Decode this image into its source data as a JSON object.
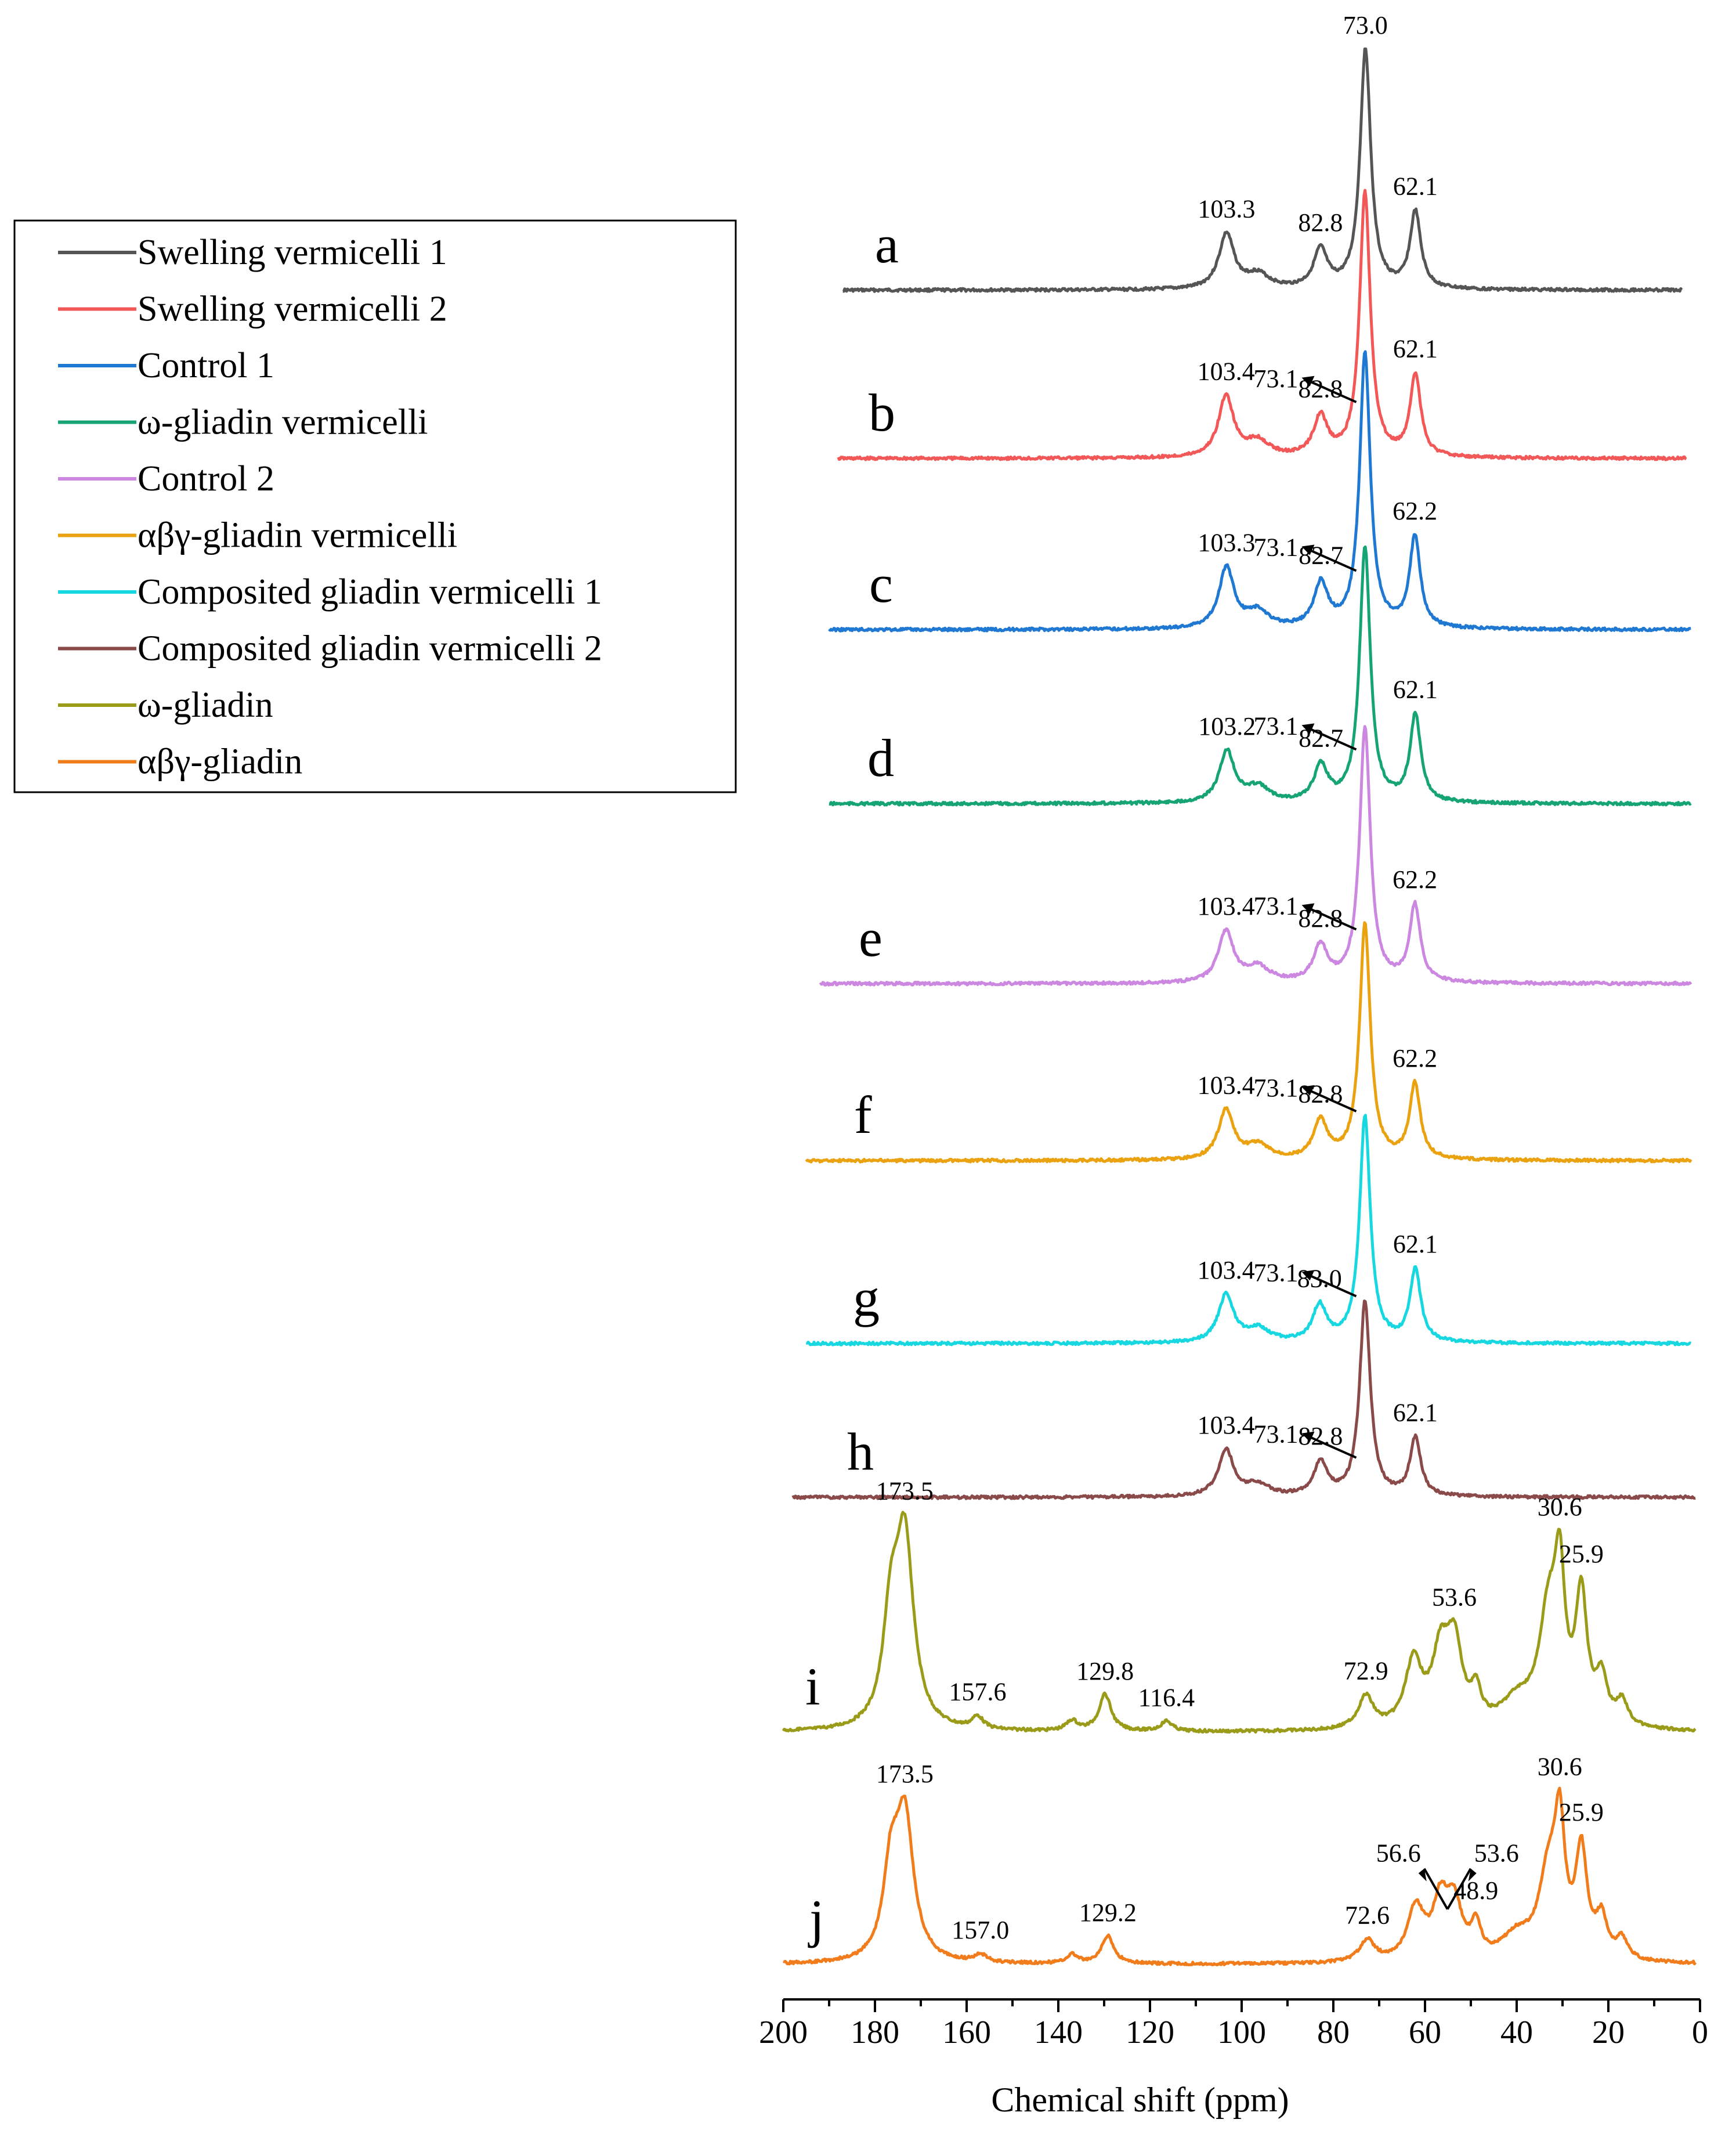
{
  "chart_data": {
    "type": "line",
    "title": "",
    "xlabel": "Chemical shift (ppm)",
    "ylabel": "",
    "xlim": [
      200,
      0
    ],
    "x_reversed": true,
    "x_ticks": [
      "200",
      "180",
      "160",
      "140",
      "120",
      "100",
      "80",
      "60",
      "40",
      "20",
      "0"
    ],
    "x_tick_values": [
      200,
      180,
      160,
      140,
      120,
      100,
      80,
      60,
      40,
      20,
      0
    ],
    "legend": {
      "placement": "top-left",
      "entries": [
        {
          "name": "Swelling vermicelli 1",
          "color": "#555555"
        },
        {
          "name": "Swelling vermicelli 2",
          "color": "#f25858"
        },
        {
          "name": "Control 1",
          "color": "#1f78d1"
        },
        {
          "name": "ω-gliadin vermicelli",
          "color": "#16a475"
        },
        {
          "name": "Control 2",
          "color": "#cc88e0"
        },
        {
          "name": "αβγ-gliadin vermicelli",
          "color": "#eba211"
        },
        {
          "name": "Composited gliadin vermicelli 1",
          "color": "#17d7e0"
        },
        {
          "name": "Composited gliadin vermicelli 2",
          "color": "#8b4a4a"
        },
        {
          "name": "ω-gliadin",
          "color": "#9b9b1a"
        },
        {
          "name": "αβγ-gliadin",
          "color": "#f07c1c"
        }
      ]
    },
    "series": [
      {
        "label": "a",
        "name": "Swelling vermicelli 1",
        "color": "#555555",
        "range": [
          187,
          4
        ],
        "peaks": [
          {
            "x": 103.3,
            "h": 0.23,
            "w": 2.0
          },
          {
            "x": 96.5,
            "h": 0.06,
            "w": 3.0
          },
          {
            "x": 82.8,
            "h": 0.16,
            "w": 1.8
          },
          {
            "x": 73.0,
            "h": 1.0,
            "w": 1.4
          },
          {
            "x": 62.1,
            "h": 0.32,
            "w": 1.4
          }
        ],
        "labels": [
          {
            "text": "73.0",
            "x": 73.0,
            "pos": "top"
          },
          {
            "text": "103.3",
            "x": 103.3,
            "pos": "top"
          },
          {
            "text": "82.8",
            "x": 82.8,
            "pos": "top"
          },
          {
            "text": "62.1",
            "x": 62.1,
            "pos": "top"
          }
        ]
      },
      {
        "label": "b",
        "name": "Swelling vermicelli 2",
        "color": "#f25858",
        "range": [
          188,
          3
        ],
        "peaks": [
          {
            "x": 103.4,
            "h": 0.23,
            "w": 2.0
          },
          {
            "x": 96.5,
            "h": 0.06,
            "w": 3.0
          },
          {
            "x": 82.8,
            "h": 0.15,
            "w": 1.8
          },
          {
            "x": 73.1,
            "h": 1.0,
            "w": 1.4
          },
          {
            "x": 62.1,
            "h": 0.31,
            "w": 1.4
          }
        ],
        "labels": [
          {
            "text": "73.1",
            "x": 73.1,
            "pos": "arrow"
          },
          {
            "text": "103.4",
            "x": 103.4,
            "pos": "top"
          },
          {
            "text": "82.8",
            "x": 82.8,
            "pos": "top"
          },
          {
            "text": "62.1",
            "x": 62.1,
            "pos": "top"
          }
        ]
      },
      {
        "label": "c",
        "name": "Control 1",
        "color": "#1f78d1",
        "range": [
          190,
          2
        ],
        "peaks": [
          {
            "x": 103.3,
            "h": 0.22,
            "w": 2.0
          },
          {
            "x": 96.5,
            "h": 0.06,
            "w": 3.0
          },
          {
            "x": 82.7,
            "h": 0.16,
            "w": 1.8
          },
          {
            "x": 73.1,
            "h": 1.0,
            "w": 1.4
          },
          {
            "x": 62.2,
            "h": 0.33,
            "w": 1.4
          }
        ],
        "labels": [
          {
            "text": "73.1",
            "x": 73.1,
            "pos": "arrow"
          },
          {
            "text": "103.3",
            "x": 103.3,
            "pos": "top"
          },
          {
            "text": "82.7",
            "x": 82.7,
            "pos": "top"
          },
          {
            "text": "62.2",
            "x": 62.2,
            "pos": "top"
          }
        ]
      },
      {
        "label": "d",
        "name": "ω-gliadin vermicelli",
        "color": "#16a475",
        "range": [
          190,
          2
        ],
        "peaks": [
          {
            "x": 103.2,
            "h": 0.2,
            "w": 2.0
          },
          {
            "x": 96.5,
            "h": 0.06,
            "w": 3.0
          },
          {
            "x": 82.7,
            "h": 0.14,
            "w": 1.8
          },
          {
            "x": 73.1,
            "h": 1.0,
            "w": 1.4
          },
          {
            "x": 62.1,
            "h": 0.34,
            "w": 1.4
          }
        ],
        "labels": [
          {
            "text": "73.1",
            "x": 73.1,
            "pos": "arrow"
          },
          {
            "text": "103.2",
            "x": 103.2,
            "pos": "top"
          },
          {
            "text": "82.7",
            "x": 82.7,
            "pos": "top"
          },
          {
            "text": "62.1",
            "x": 62.1,
            "pos": "top"
          }
        ]
      },
      {
        "label": "e",
        "name": "Control 2",
        "color": "#cc88e0",
        "range": [
          192,
          2
        ],
        "peaks": [
          {
            "x": 103.4,
            "h": 0.2,
            "w": 2.0
          },
          {
            "x": 96.5,
            "h": 0.06,
            "w": 3.0
          },
          {
            "x": 82.8,
            "h": 0.14,
            "w": 1.8
          },
          {
            "x": 73.1,
            "h": 1.0,
            "w": 1.4
          },
          {
            "x": 62.2,
            "h": 0.3,
            "w": 1.4
          }
        ],
        "labels": [
          {
            "text": "73.1",
            "x": 73.1,
            "pos": "arrow"
          },
          {
            "text": "103.4",
            "x": 103.4,
            "pos": "top"
          },
          {
            "text": "82.8",
            "x": 82.8,
            "pos": "top"
          },
          {
            "text": "62.2",
            "x": 62.2,
            "pos": "top"
          }
        ]
      },
      {
        "label": "f",
        "name": "αβγ-gliadin vermicelli",
        "color": "#eba211",
        "range": [
          195,
          2
        ],
        "peaks": [
          {
            "x": 103.4,
            "h": 0.21,
            "w": 2.0
          },
          {
            "x": 96.5,
            "h": 0.06,
            "w": 3.0
          },
          {
            "x": 82.8,
            "h": 0.16,
            "w": 1.8
          },
          {
            "x": 73.1,
            "h": 1.0,
            "w": 1.4
          },
          {
            "x": 62.2,
            "h": 0.32,
            "w": 1.4
          }
        ],
        "labels": [
          {
            "text": "73.1",
            "x": 73.1,
            "pos": "arrow"
          },
          {
            "text": "103.4",
            "x": 103.4,
            "pos": "top"
          },
          {
            "text": "82.8",
            "x": 82.8,
            "pos": "top"
          },
          {
            "text": "62.2",
            "x": 62.2,
            "pos": "top"
          }
        ]
      },
      {
        "label": "g",
        "name": "Composited gliadin vermicelli 1",
        "color": "#17d7e0",
        "range": [
          195,
          2
        ],
        "peaks": [
          {
            "x": 103.4,
            "h": 0.21,
            "w": 2.0
          },
          {
            "x": 96.5,
            "h": 0.06,
            "w": 3.0
          },
          {
            "x": 83.0,
            "h": 0.16,
            "w": 1.8
          },
          {
            "x": 73.1,
            "h": 1.0,
            "w": 1.4
          },
          {
            "x": 62.1,
            "h": 0.32,
            "w": 1.4
          }
        ],
        "labels": [
          {
            "text": "73.1",
            "x": 73.1,
            "pos": "arrow"
          },
          {
            "text": "103.4",
            "x": 103.4,
            "pos": "top"
          },
          {
            "text": "83.0",
            "x": 83.0,
            "pos": "top"
          },
          {
            "text": "62.1",
            "x": 62.1,
            "pos": "top"
          }
        ]
      },
      {
        "label": "h",
        "name": "Composited gliadin vermicelli 2",
        "color": "#8b4a4a",
        "range": [
          198,
          1
        ],
        "peaks": [
          {
            "x": 103.4,
            "h": 0.24,
            "w": 2.0
          },
          {
            "x": 96.5,
            "h": 0.06,
            "w": 3.0
          },
          {
            "x": 82.8,
            "h": 0.17,
            "w": 1.8
          },
          {
            "x": 73.1,
            "h": 1.0,
            "w": 1.4
          },
          {
            "x": 62.1,
            "h": 0.3,
            "w": 1.4
          }
        ],
        "labels": [
          {
            "text": "73.1",
            "x": 73.1,
            "pos": "arrow"
          },
          {
            "text": "103.4",
            "x": 103.4,
            "pos": "top"
          },
          {
            "text": "82.8",
            "x": 82.8,
            "pos": "top"
          },
          {
            "text": "62.1",
            "x": 62.1,
            "pos": "top"
          }
        ]
      },
      {
        "label": "i",
        "name": "ω-gliadin",
        "color": "#9b9b1a",
        "range": [
          200,
          1
        ],
        "peaks": [
          {
            "x": 173.5,
            "h": 0.92,
            "w": 2.3
          },
          {
            "x": 176.5,
            "h": 0.5,
            "w": 2.0
          },
          {
            "x": 157.6,
            "h": 0.06,
            "w": 1.5
          },
          {
            "x": 129.8,
            "h": 0.18,
            "w": 1.6
          },
          {
            "x": 137.0,
            "h": 0.05,
            "w": 1.5
          },
          {
            "x": 116.4,
            "h": 0.05,
            "w": 1.5
          },
          {
            "x": 72.9,
            "h": 0.16,
            "w": 2.0
          },
          {
            "x": 62.5,
            "h": 0.32,
            "w": 2.2
          },
          {
            "x": 56.6,
            "h": 0.34,
            "w": 2.2
          },
          {
            "x": 53.6,
            "h": 0.38,
            "w": 2.0
          },
          {
            "x": 48.9,
            "h": 0.15,
            "w": 1.3
          },
          {
            "x": 40.0,
            "h": 0.12,
            "w": 4.0
          },
          {
            "x": 33.0,
            "h": 0.55,
            "w": 2.5
          },
          {
            "x": 30.6,
            "h": 0.62,
            "w": 1.3
          },
          {
            "x": 25.9,
            "h": 0.62,
            "w": 1.5
          },
          {
            "x": 21.5,
            "h": 0.22,
            "w": 1.5
          },
          {
            "x": 17.0,
            "h": 0.12,
            "w": 1.5
          }
        ],
        "labels": [
          {
            "text": "173.5",
            "x": 173.5,
            "pos": "top"
          },
          {
            "text": "157.6",
            "x": 157.6,
            "pos": "top"
          },
          {
            "text": "129.8",
            "x": 129.8,
            "pos": "top"
          },
          {
            "text": "116.4",
            "x": 116.4,
            "pos": "top"
          },
          {
            "text": "72.9",
            "x": 72.9,
            "pos": "top"
          },
          {
            "text": "53.6",
            "x": 53.6,
            "pos": "top"
          },
          {
            "text": "30.6",
            "x": 30.6,
            "pos": "top"
          },
          {
            "text": "25.9",
            "x": 25.9,
            "pos": "top"
          }
        ]
      },
      {
        "label": "j",
        "name": "αβγ-gliadin",
        "color": "#f07c1c",
        "range": [
          200,
          1
        ],
        "peaks": [
          {
            "x": 173.5,
            "h": 0.92,
            "w": 2.3
          },
          {
            "x": 176.5,
            "h": 0.55,
            "w": 2.0
          },
          {
            "x": 157.0,
            "h": 0.05,
            "w": 1.5
          },
          {
            "x": 129.2,
            "h": 0.18,
            "w": 1.6
          },
          {
            "x": 137.0,
            "h": 0.06,
            "w": 1.5
          },
          {
            "x": 72.6,
            "h": 0.14,
            "w": 2.0
          },
          {
            "x": 62.0,
            "h": 0.34,
            "w": 2.2
          },
          {
            "x": 56.6,
            "h": 0.36,
            "w": 2.0
          },
          {
            "x": 53.6,
            "h": 0.34,
            "w": 2.0
          },
          {
            "x": 48.9,
            "h": 0.2,
            "w": 1.3
          },
          {
            "x": 40.0,
            "h": 0.15,
            "w": 4.0
          },
          {
            "x": 33.0,
            "h": 0.55,
            "w": 2.5
          },
          {
            "x": 30.6,
            "h": 0.75,
            "w": 1.3
          },
          {
            "x": 25.9,
            "h": 0.68,
            "w": 1.5
          },
          {
            "x": 21.5,
            "h": 0.25,
            "w": 1.5
          },
          {
            "x": 17.0,
            "h": 0.13,
            "w": 1.5
          }
        ],
        "labels": [
          {
            "text": "173.5",
            "x": 173.5,
            "pos": "top"
          },
          {
            "text": "157.0",
            "x": 157.0,
            "pos": "top"
          },
          {
            "text": "129.2",
            "x": 129.2,
            "pos": "top"
          },
          {
            "text": "72.6",
            "x": 72.6,
            "pos": "top"
          },
          {
            "text": "56.6",
            "x": 56.6,
            "pos": "arrow-left"
          },
          {
            "text": "53.6",
            "x": 53.6,
            "pos": "arrow-right"
          },
          {
            "text": "48.9",
            "x": 48.9,
            "pos": "top"
          },
          {
            "text": "30.6",
            "x": 30.6,
            "pos": "top"
          },
          {
            "text": "25.9",
            "x": 25.9,
            "pos": "top"
          }
        ]
      }
    ]
  }
}
